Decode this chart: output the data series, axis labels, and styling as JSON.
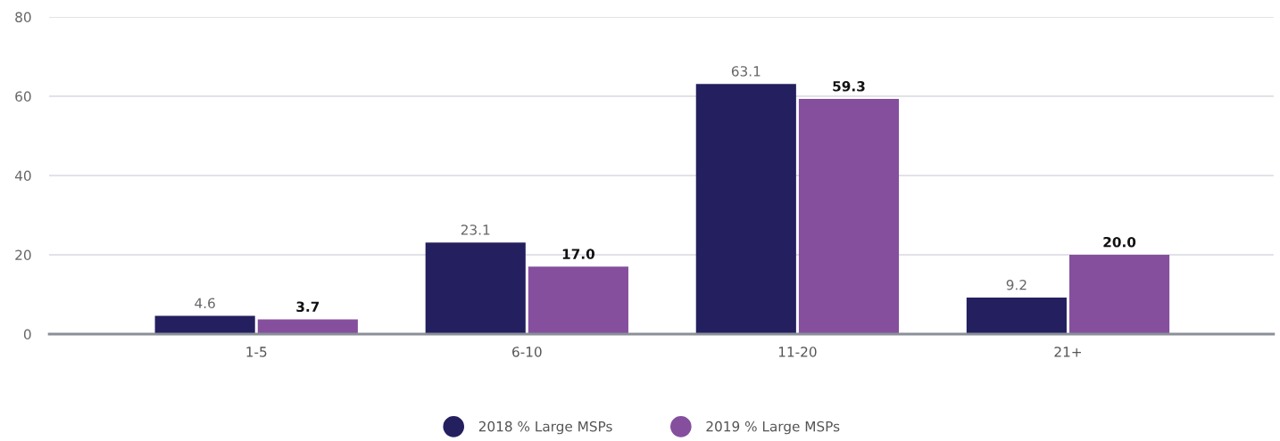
{
  "chart_data": {
    "type": "bar",
    "categories": [
      "1-5",
      "6-10",
      "11-20",
      "21+"
    ],
    "series": [
      {
        "name": "2018 % Large MSPs",
        "color": "#24205f",
        "values": [
          4.6,
          23.1,
          63.1,
          9.2
        ],
        "value_labels": [
          "4.6",
          "23.1",
          "63.1",
          "9.2"
        ]
      },
      {
        "name": "2019 % Large MSPs",
        "color": "#854f9e",
        "values": [
          3.7,
          17.0,
          59.3,
          20.0
        ],
        "value_labels": [
          "3.7",
          "17.0",
          "59.3",
          "20.0"
        ]
      }
    ],
    "ylim": [
      0,
      80
    ],
    "yticks": [
      0,
      20,
      40,
      60,
      80
    ],
    "grid": "y",
    "legend": "bottom"
  }
}
